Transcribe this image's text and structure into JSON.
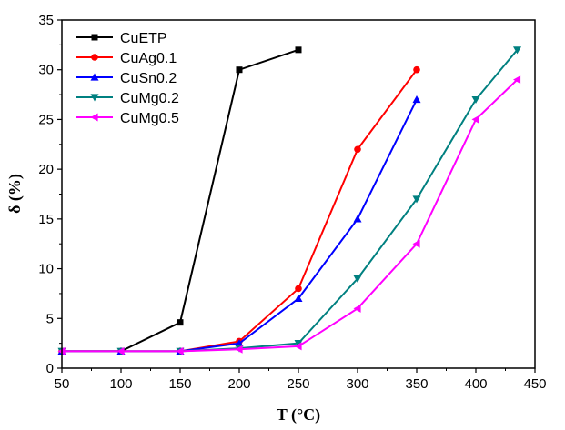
{
  "chart_data": {
    "type": "line",
    "title": "",
    "xlabel": "T (°C)",
    "ylabel": "δ (%)",
    "xlim": [
      50,
      450
    ],
    "ylim": [
      0,
      35
    ],
    "xticks": [
      50,
      100,
      150,
      200,
      250,
      300,
      350,
      400,
      450
    ],
    "yticks": [
      0,
      5,
      10,
      15,
      20,
      25,
      30,
      35
    ],
    "legend_position": "top-left",
    "grid": false,
    "series": [
      {
        "name": "CuETP",
        "color": "#000000",
        "marker": "square",
        "x": [
          50,
          100,
          150,
          200,
          250
        ],
        "y": [
          1.7,
          1.7,
          4.6,
          30,
          32
        ]
      },
      {
        "name": "CuAg0.1",
        "color": "#ff0000",
        "marker": "circle",
        "x": [
          50,
          100,
          150,
          200,
          250,
          300,
          350
        ],
        "y": [
          1.7,
          1.7,
          1.7,
          2.7,
          8,
          22,
          30
        ]
      },
      {
        "name": "CuSn0.2",
        "color": "#0000ff",
        "marker": "triangle-up",
        "x": [
          50,
          100,
          150,
          200,
          250,
          300,
          350
        ],
        "y": [
          1.7,
          1.7,
          1.7,
          2.5,
          7,
          15,
          27
        ]
      },
      {
        "name": "CuMg0.2",
        "color": "#008080",
        "marker": "triangle-down",
        "x": [
          50,
          100,
          150,
          200,
          250,
          300,
          350,
          400,
          435
        ],
        "y": [
          1.7,
          1.7,
          1.7,
          2,
          2.5,
          9,
          17,
          27,
          32
        ]
      },
      {
        "name": "CuMg0.5",
        "color": "#ff00ff",
        "marker": "triangle-left",
        "x": [
          50,
          100,
          150,
          200,
          250,
          300,
          350,
          400,
          435
        ],
        "y": [
          1.7,
          1.7,
          1.7,
          1.9,
          2.2,
          6,
          12.5,
          25,
          29
        ]
      }
    ]
  }
}
